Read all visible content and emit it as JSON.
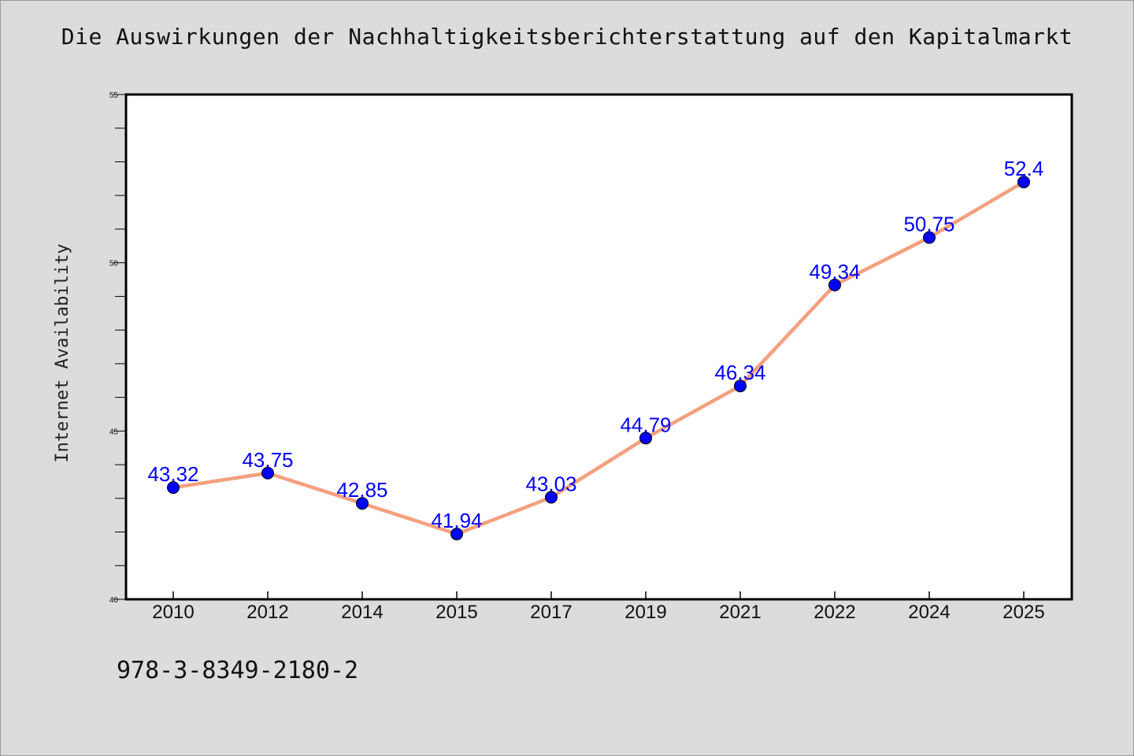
{
  "title": "Die Auswirkungen der Nachhaltigkeitsberichterstattung auf den Kapitalmarkt",
  "footer_text": "978-3-8349-2180-2",
  "colors": {
    "background": "#dcdcdc",
    "plot_background": "#ffffff",
    "line": "#f4a07e",
    "marker": "#0000ff",
    "data_label": "#0000ff"
  },
  "chart_data": {
    "type": "line",
    "title": "Die Auswirkungen der Nachhaltigkeitsberichterstattung auf den Kapitalmarkt",
    "xlabel": "",
    "ylabel": "Internet Availability",
    "categories": [
      "2010",
      "2012",
      "2014",
      "2015",
      "2017",
      "2019",
      "2021",
      "2022",
      "2024",
      "2025"
    ],
    "values": [
      43.32,
      43.75,
      42.85,
      41.94,
      43.03,
      44.79,
      46.34,
      49.34,
      50.75,
      52.4
    ],
    "data_labels": [
      "43.32",
      "43.75",
      "42.85",
      "41.94",
      "43.03",
      "44.79",
      "46.34",
      "49.34",
      "50.75",
      "52.4"
    ],
    "ylim": [
      40,
      55
    ],
    "yticks": [
      40,
      45,
      50,
      55
    ],
    "grid": false,
    "legend": "none"
  }
}
